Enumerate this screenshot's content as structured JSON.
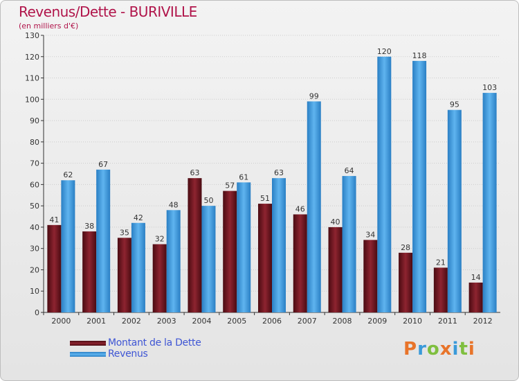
{
  "header": {
    "title": "Revenus/Dette - BURIVILLE",
    "subtitle": "(en milliers d'€)"
  },
  "colors": {
    "series_0": "#7a1620",
    "series_1": "#3a9ad9",
    "axis": "#333333",
    "grid": "#cccccc"
  },
  "logo": {
    "text": "Proxiti",
    "letters": [
      {
        "char": "P",
        "color": "#e8742a"
      },
      {
        "char": "r",
        "color": "#3a9ad9"
      },
      {
        "char": "o",
        "color": "#7fbf3f"
      },
      {
        "char": "x",
        "color": "#e8742a"
      },
      {
        "char": "i",
        "color": "#3a9ad9"
      },
      {
        "char": "t",
        "color": "#7fbf3f"
      },
      {
        "char": "i",
        "color": "#e8742a"
      }
    ]
  },
  "chart_data": {
    "type": "bar",
    "title": "Revenus/Dette - BURIVILLE",
    "subtitle": "(en milliers d'€)",
    "categories": [
      "2000",
      "2001",
      "2002",
      "2003",
      "2004",
      "2005",
      "2006",
      "2007",
      "2008",
      "2009",
      "2010",
      "2011",
      "2012"
    ],
    "series": [
      {
        "name": "Montant de la Dette",
        "values": [
          41,
          38,
          35,
          32,
          63,
          57,
          51,
          46,
          40,
          34,
          28,
          21,
          14
        ]
      },
      {
        "name": "Revenus",
        "values": [
          62,
          67,
          42,
          48,
          50,
          61,
          63,
          99,
          64,
          120,
          118,
          95,
          103
        ]
      }
    ],
    "ylim": [
      0,
      130
    ],
    "yticks": [
      0,
      10,
      20,
      30,
      40,
      50,
      60,
      70,
      80,
      90,
      100,
      110,
      120,
      130
    ],
    "grid": true,
    "legend": "bottom-left"
  }
}
